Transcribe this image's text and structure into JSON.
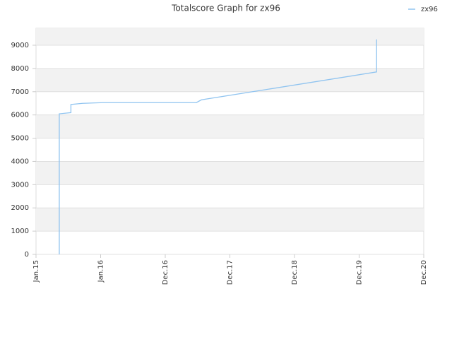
{
  "chart_data": {
    "type": "line",
    "title": "Totalscore Graph for zx96",
    "x": [
      0.36,
      0.36,
      0.54,
      0.54,
      0.72,
      1.04,
      2.48,
      2.56,
      5.27,
      5.27
    ],
    "series": [
      {
        "name": "zx96",
        "color": "#90c4f0",
        "values": [
          0,
          6050,
          6100,
          6450,
          6500,
          6530,
          6530,
          6650,
          7850,
          9250
        ]
      }
    ],
    "xlim": [
      0,
      6
    ],
    "xticks": [
      {
        "value": 0,
        "label": "Jan.15"
      },
      {
        "value": 1,
        "label": "Jan.16"
      },
      {
        "value": 2,
        "label": "Dec.16"
      },
      {
        "value": 3,
        "label": "Dec.17"
      },
      {
        "value": 4,
        "label": "Dec.18"
      },
      {
        "value": 5,
        "label": "Dec.19"
      },
      {
        "value": 6,
        "label": "Dec.20"
      }
    ],
    "ylim": [
      0,
      9730
    ],
    "yticks": [
      0,
      1000,
      2000,
      3000,
      4000,
      5000,
      6000,
      7000,
      8000,
      9000
    ],
    "grid": true,
    "legend": "top-right"
  }
}
